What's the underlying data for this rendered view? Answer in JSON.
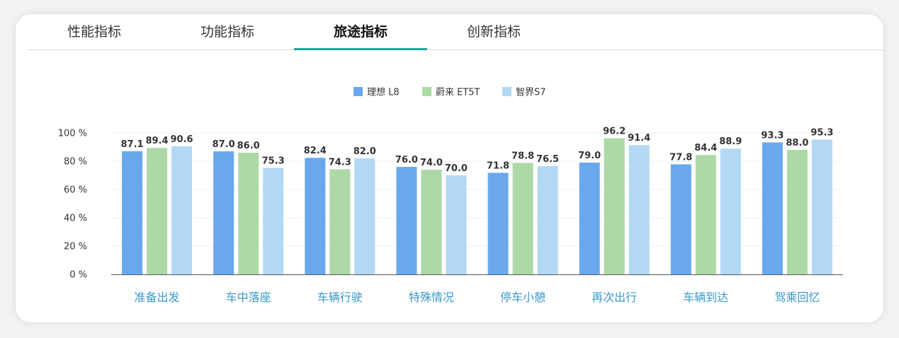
{
  "tabs": [
    {
      "label": "性能指标",
      "active": false
    },
    {
      "label": "功能指标",
      "active": false
    },
    {
      "label": "旅途指标",
      "active": true
    },
    {
      "label": "创新指标",
      "active": false
    }
  ],
  "colors": {
    "accent": "#26a69a",
    "series": [
      "#6aa8ee",
      "#acd9a6",
      "#b3d8f4"
    ],
    "category_label": "#3a98c9"
  },
  "chart_data": {
    "type": "bar",
    "categories": [
      "准备出发",
      "车中落座",
      "车辆行驶",
      "特殊情况",
      "停车小憩",
      "再次出行",
      "车辆到达",
      "驾乘回忆"
    ],
    "series": [
      {
        "name": "理想  L8",
        "values": [
          87.1,
          87.0,
          82.4,
          76.0,
          71.8,
          79.0,
          77.8,
          93.3
        ]
      },
      {
        "name": "蔚来 ET5T",
        "values": [
          89.4,
          86.0,
          74.3,
          74.0,
          78.8,
          96.2,
          84.4,
          88.0
        ]
      },
      {
        "name": "智界S7",
        "values": [
          90.6,
          75.3,
          82.0,
          70.0,
          76.5,
          91.4,
          88.9,
          95.3
        ]
      }
    ],
    "ylim": [
      0,
      100
    ],
    "yticks": [
      "0 %",
      "20 %",
      "40 %",
      "60 %",
      "80 %",
      "100 %"
    ],
    "legend": "top-center",
    "grid": true,
    "title": "",
    "xlabel": "",
    "ylabel": ""
  }
}
